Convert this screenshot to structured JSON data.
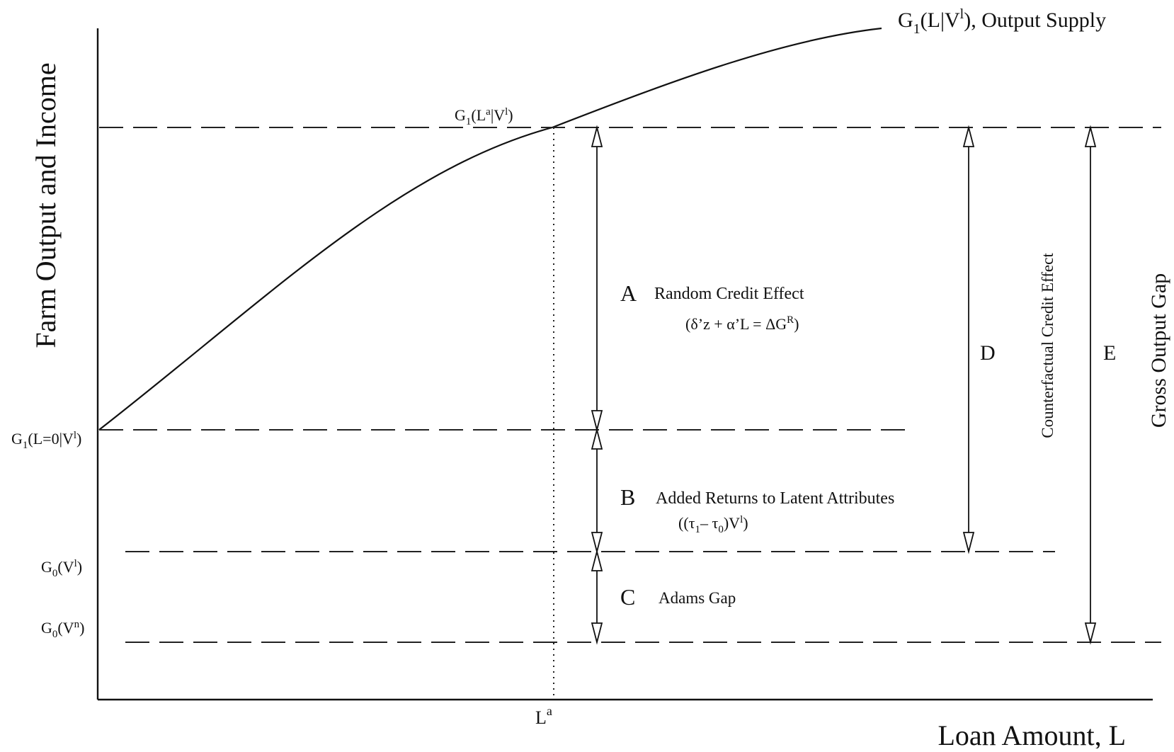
{
  "axes": {
    "y_label": "Farm Output and Income",
    "x_label": "Loan Amount, L"
  },
  "curve": {
    "label_main": "G",
    "label_sub": "1",
    "label_tail": "(L|V",
    "label_sup": "l",
    "label_rest": "), Output Supply"
  },
  "point_label": {
    "main": "G",
    "sub": "1",
    "mid": "(L",
    "sup_a": "a",
    "bar": "|V",
    "sup_l": "l",
    "close": ")"
  },
  "y_labels": {
    "g1_l0": {
      "main": "G",
      "sub": "1",
      "mid": "(L=0|V",
      "sup": "l",
      "close": ")"
    },
    "g0_vl": {
      "main": "G",
      "sub": "0",
      "mid": "(V",
      "sup": "l",
      "close": ")"
    },
    "g0_vn": {
      "main": "G",
      "sub": "0",
      "mid": "(V",
      "sup": "n",
      "close": ")"
    }
  },
  "x_tick": {
    "main": "L",
    "sup": "a"
  },
  "segments": {
    "a": {
      "letter": "A",
      "title": "Random Credit Effect",
      "formula_pre": "(δ’z + α’L = ΔG",
      "formula_sup": "R",
      "formula_post": ")"
    },
    "b": {
      "letter": "B",
      "title": "Added Returns to Latent Attributes",
      "formula_pre": "((τ",
      "formula_sub1": "1",
      "formula_mid": "– τ",
      "formula_sub2": "0",
      "formula_post1": ")V",
      "formula_sup": "l",
      "formula_post2": ")"
    },
    "c": {
      "letter": "C",
      "title": "Adams Gap"
    },
    "d": {
      "letter": "D",
      "title": "Counterfactual Credit Effect"
    },
    "e": {
      "letter": "E",
      "title": "Gross Output Gap"
    }
  }
}
